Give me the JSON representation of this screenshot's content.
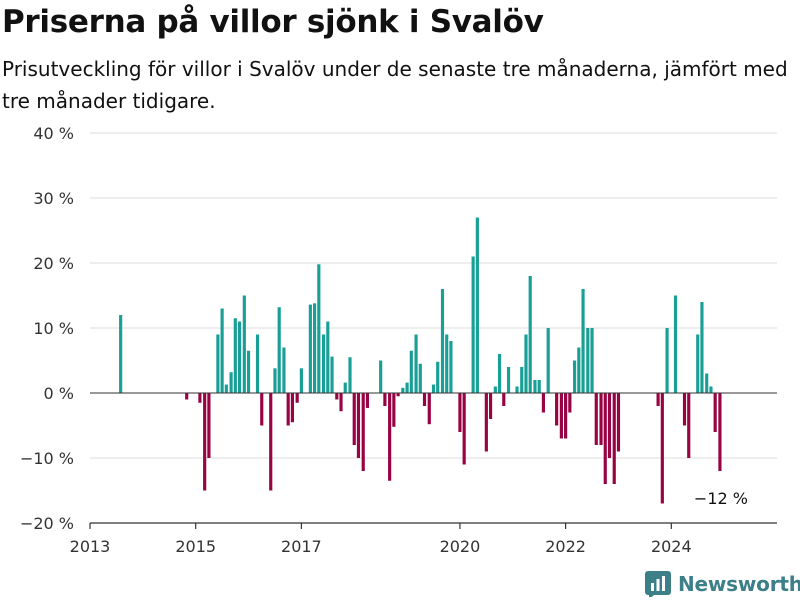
{
  "header": {
    "title": "Priserna på villor sjönk i Svalöv",
    "subtitle": "Prisutveckling för villor i Svalöv under de senaste tre månaderna, jämfört med tre månader tidigare."
  },
  "brand": {
    "name": "Newsworthy",
    "icon": "newsworthy-logo-icon"
  },
  "colors": {
    "positive": "#1a9f97",
    "negative": "#980443",
    "grid": "#dddddd",
    "axis": "#333333",
    "text": "#333333"
  },
  "chart_data": {
    "type": "bar",
    "ylim": [
      -20,
      40
    ],
    "yticks": [
      -20,
      -10,
      0,
      10,
      20,
      30,
      40
    ],
    "ytick_labels": [
      "−20 %",
      "−10 %",
      "0 %",
      "10 %",
      "20 %",
      "30 %",
      "40 %"
    ],
    "xlim": [
      2013.0,
      2026.0
    ],
    "xtick_values": [
      2013,
      2015,
      2017,
      2020,
      2022,
      2024
    ],
    "xtick_labels": [
      "2013",
      "2015",
      "2017",
      "2020",
      "2022",
      "2024"
    ],
    "grid": true,
    "annotation": {
      "text": "−12 %",
      "x": 2024.92,
      "y": -12
    },
    "bars": [
      {
        "x": 2013.58,
        "y": 12
      },
      {
        "x": 2014.83,
        "y": -1
      },
      {
        "x": 2015.08,
        "y": -1.5
      },
      {
        "x": 2015.17,
        "y": -15
      },
      {
        "x": 2015.25,
        "y": -10
      },
      {
        "x": 2015.42,
        "y": 9
      },
      {
        "x": 2015.5,
        "y": 13
      },
      {
        "x": 2015.58,
        "y": 1.3
      },
      {
        "x": 2015.67,
        "y": 3.2
      },
      {
        "x": 2015.75,
        "y": 11.5
      },
      {
        "x": 2015.83,
        "y": 11
      },
      {
        "x": 2015.92,
        "y": 15
      },
      {
        "x": 2016.0,
        "y": 6.5
      },
      {
        "x": 2016.17,
        "y": 9
      },
      {
        "x": 2016.25,
        "y": -5
      },
      {
        "x": 2016.42,
        "y": -15
      },
      {
        "x": 2016.5,
        "y": 3.8
      },
      {
        "x": 2016.58,
        "y": 13.2
      },
      {
        "x": 2016.67,
        "y": 7
      },
      {
        "x": 2016.75,
        "y": -5
      },
      {
        "x": 2016.83,
        "y": -4.5
      },
      {
        "x": 2016.92,
        "y": -1.5
      },
      {
        "x": 2017.0,
        "y": 3.8
      },
      {
        "x": 2017.17,
        "y": 13.6
      },
      {
        "x": 2017.25,
        "y": 13.8
      },
      {
        "x": 2017.33,
        "y": 19.8
      },
      {
        "x": 2017.42,
        "y": 9
      },
      {
        "x": 2017.5,
        "y": 11
      },
      {
        "x": 2017.58,
        "y": 5.6
      },
      {
        "x": 2017.67,
        "y": -1
      },
      {
        "x": 2017.75,
        "y": -2.8
      },
      {
        "x": 2017.83,
        "y": 1.6
      },
      {
        "x": 2017.92,
        "y": 5.5
      },
      {
        "x": 2018.0,
        "y": -8
      },
      {
        "x": 2018.08,
        "y": -10
      },
      {
        "x": 2018.17,
        "y": -12
      },
      {
        "x": 2018.25,
        "y": -2.3
      },
      {
        "x": 2018.5,
        "y": 5
      },
      {
        "x": 2018.58,
        "y": -2
      },
      {
        "x": 2018.67,
        "y": -13.5
      },
      {
        "x": 2018.75,
        "y": -5.2
      },
      {
        "x": 2018.83,
        "y": -0.5
      },
      {
        "x": 2018.92,
        "y": 0.8
      },
      {
        "x": 2019.0,
        "y": 1.6
      },
      {
        "x": 2019.08,
        "y": 6.5
      },
      {
        "x": 2019.17,
        "y": 9
      },
      {
        "x": 2019.25,
        "y": 4.5
      },
      {
        "x": 2019.33,
        "y": -2
      },
      {
        "x": 2019.42,
        "y": -4.8
      },
      {
        "x": 2019.5,
        "y": 1.3
      },
      {
        "x": 2019.58,
        "y": 4.8
      },
      {
        "x": 2019.67,
        "y": 16
      },
      {
        "x": 2019.75,
        "y": 9
      },
      {
        "x": 2019.83,
        "y": 8
      },
      {
        "x": 2020.0,
        "y": -6
      },
      {
        "x": 2020.08,
        "y": -11
      },
      {
        "x": 2020.25,
        "y": 21
      },
      {
        "x": 2020.33,
        "y": 27
      },
      {
        "x": 2020.5,
        "y": -9
      },
      {
        "x": 2020.58,
        "y": -4
      },
      {
        "x": 2020.67,
        "y": 1
      },
      {
        "x": 2020.75,
        "y": 6
      },
      {
        "x": 2020.83,
        "y": -2
      },
      {
        "x": 2020.92,
        "y": 4
      },
      {
        "x": 2021.08,
        "y": 1
      },
      {
        "x": 2021.17,
        "y": 4
      },
      {
        "x": 2021.25,
        "y": 9
      },
      {
        "x": 2021.33,
        "y": 18
      },
      {
        "x": 2021.42,
        "y": 2
      },
      {
        "x": 2021.5,
        "y": 2
      },
      {
        "x": 2021.58,
        "y": -3
      },
      {
        "x": 2021.67,
        "y": 10
      },
      {
        "x": 2021.83,
        "y": -5
      },
      {
        "x": 2021.92,
        "y": -7
      },
      {
        "x": 2022.0,
        "y": -7
      },
      {
        "x": 2022.08,
        "y": -3
      },
      {
        "x": 2022.17,
        "y": 5
      },
      {
        "x": 2022.25,
        "y": 7
      },
      {
        "x": 2022.33,
        "y": 16
      },
      {
        "x": 2022.42,
        "y": 10
      },
      {
        "x": 2022.5,
        "y": 10
      },
      {
        "x": 2022.58,
        "y": -8
      },
      {
        "x": 2022.67,
        "y": -8
      },
      {
        "x": 2022.75,
        "y": -14
      },
      {
        "x": 2022.83,
        "y": -10
      },
      {
        "x": 2022.92,
        "y": -14
      },
      {
        "x": 2023.0,
        "y": -9
      },
      {
        "x": 2023.75,
        "y": -2
      },
      {
        "x": 2023.83,
        "y": -17
      },
      {
        "x": 2023.92,
        "y": 10
      },
      {
        "x": 2024.08,
        "y": 15
      },
      {
        "x": 2024.25,
        "y": -5
      },
      {
        "x": 2024.33,
        "y": -10
      },
      {
        "x": 2024.5,
        "y": 9
      },
      {
        "x": 2024.58,
        "y": 14
      },
      {
        "x": 2024.67,
        "y": 3
      },
      {
        "x": 2024.75,
        "y": 1
      },
      {
        "x": 2024.83,
        "y": -6
      },
      {
        "x": 2024.92,
        "y": -12
      }
    ]
  }
}
